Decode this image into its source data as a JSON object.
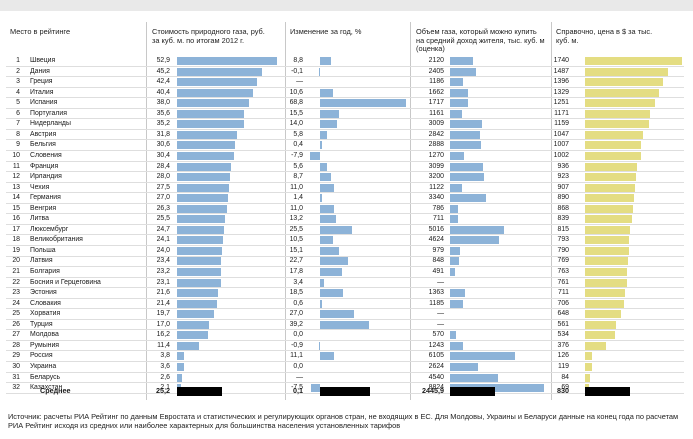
{
  "headers": {
    "rank": "Место в рейтинге",
    "price": "Стоимость природного газа, руб. за куб. м. по итогам 2012 г.",
    "change": "Изменение за год, %",
    "volume": "Объем газа, который можно купить на средний доход жителя, тыс. куб. м (оценка)",
    "usd": "Справочно, цена в $ за тыс. куб. м."
  },
  "rows": [
    {
      "rank": "1",
      "country": "Швеция",
      "price": "52,9",
      "change": "8,8",
      "volume": "2120",
      "usd": "1740"
    },
    {
      "rank": "2",
      "country": "Дания",
      "price": "45,2",
      "change": "-0,1",
      "volume": "2405",
      "usd": "1487"
    },
    {
      "rank": "3",
      "country": "Греция",
      "price": "42,4",
      "change": "—",
      "volume": "1186",
      "usd": "1396"
    },
    {
      "rank": "4",
      "country": "Италия",
      "price": "40,4",
      "change": "10,6",
      "volume": "1662",
      "usd": "1329"
    },
    {
      "rank": "5",
      "country": "Испания",
      "price": "38,0",
      "change": "68,8",
      "volume": "1717",
      "usd": "1251"
    },
    {
      "rank": "6",
      "country": "Португалия",
      "price": "35,6",
      "change": "15,5",
      "volume": "1161",
      "usd": "1171"
    },
    {
      "rank": "7",
      "country": "Нидерланды",
      "price": "35,2",
      "change": "14,0",
      "volume": "3009",
      "usd": "1159"
    },
    {
      "rank": "8",
      "country": "Австрия",
      "price": "31,8",
      "change": "5,8",
      "volume": "2842",
      "usd": "1047"
    },
    {
      "rank": "9",
      "country": "Бельгия",
      "price": "30,6",
      "change": "0,4",
      "volume": "2888",
      "usd": "1007"
    },
    {
      "rank": "10",
      "country": "Словения",
      "price": "30,4",
      "change": "-7,9",
      "volume": "1270",
      "usd": "1002"
    },
    {
      "rank": "11",
      "country": "Франция",
      "price": "28,4",
      "change": "5,6",
      "volume": "3099",
      "usd": "936"
    },
    {
      "rank": "12",
      "country": "Ирландия",
      "price": "28,0",
      "change": "8,7",
      "volume": "3200",
      "usd": "923"
    },
    {
      "rank": "13",
      "country": "Чехия",
      "price": "27,5",
      "change": "11,0",
      "volume": "1122",
      "usd": "907"
    },
    {
      "rank": "14",
      "country": "Германия",
      "price": "27,0",
      "change": "1,4",
      "volume": "3340",
      "usd": "890"
    },
    {
      "rank": "15",
      "country": "Венгрия",
      "price": "26,3",
      "change": "11,0",
      "volume": "786",
      "usd": "868"
    },
    {
      "rank": "16",
      "country": "Литва",
      "price": "25,5",
      "change": "13,2",
      "volume": "711",
      "usd": "839"
    },
    {
      "rank": "17",
      "country": "Люксембург",
      "price": "24,7",
      "change": "25,5",
      "volume": "5016",
      "usd": "815"
    },
    {
      "rank": "18",
      "country": "Великобритания",
      "price": "24,1",
      "change": "10,5",
      "volume": "4624",
      "usd": "793"
    },
    {
      "rank": "19",
      "country": "Польша",
      "price": "24,0",
      "change": "15,1",
      "volume": "979",
      "usd": "790"
    },
    {
      "rank": "20",
      "country": "Латвия",
      "price": "23,4",
      "change": "22,7",
      "volume": "848",
      "usd": "769"
    },
    {
      "rank": "21",
      "country": "Болгария",
      "price": "23,2",
      "change": "17,8",
      "volume": "491",
      "usd": "763"
    },
    {
      "rank": "22",
      "country": "Босния и Герцеговина",
      "price": "23,1",
      "change": "3,4",
      "volume": "—",
      "usd": "761"
    },
    {
      "rank": "23",
      "country": "Эстония",
      "price": "21,6",
      "change": "18,5",
      "volume": "1363",
      "usd": "711"
    },
    {
      "rank": "24",
      "country": "Словакия",
      "price": "21,4",
      "change": "0,6",
      "volume": "1185",
      "usd": "706"
    },
    {
      "rank": "25",
      "country": "Хорватия",
      "price": "19,7",
      "change": "27,0",
      "volume": "—",
      "usd": "648"
    },
    {
      "rank": "26",
      "country": "Турция",
      "price": "17,0",
      "change": "39,2",
      "volume": "—",
      "usd": "561"
    },
    {
      "rank": "27",
      "country": "Молдова",
      "price": "16,2",
      "change": "0,0",
      "volume": "570",
      "usd": "534"
    },
    {
      "rank": "28",
      "country": "Румыния",
      "price": "11,4",
      "change": "-0,9",
      "volume": "1243",
      "usd": "376"
    },
    {
      "rank": "29",
      "country": "Россия",
      "price": "3,8",
      "change": "11,1",
      "volume": "6105",
      "usd": "126"
    },
    {
      "rank": "30",
      "country": "Украина",
      "price": "3,6",
      "change": "0,0",
      "volume": "2624",
      "usd": "119"
    },
    {
      "rank": "31",
      "country": "Беларусь",
      "price": "2,6",
      "change": "—",
      "volume": "4540",
      "usd": "84"
    },
    {
      "rank": "32",
      "country": "Казахстан",
      "price": "2,1",
      "change": "-7,5",
      "volume": "8824",
      "usd": "69"
    }
  ],
  "average": {
    "label": "Среднее",
    "price": "25,2",
    "change": "0,1",
    "volume": "2445,9",
    "usd": "830"
  },
  "footnote": "Источник: расчеты РИА Рейтинг по данным Евростата и статистических и регулирующих органов стран, не входящих в ЕС. Для Молдовы, Украины и Беларуси данные на конец года по расчетам РИА Рейтинг исходя из средних или наиболее характерных для большинства населения установленных тарифов",
  "chart_data": {
    "type": "bar",
    "title": "",
    "categories": [
      "Швеция",
      "Дания",
      "Греция",
      "Италия",
      "Испания",
      "Португалия",
      "Нидерланды",
      "Австрия",
      "Бельгия",
      "Словения",
      "Франция",
      "Ирландия",
      "Чехия",
      "Германия",
      "Венгрия",
      "Литва",
      "Люксембург",
      "Великобритания",
      "Польша",
      "Латвия",
      "Болгария",
      "Босния и Герцеговина",
      "Эстония",
      "Словакия",
      "Хорватия",
      "Турция",
      "Молдова",
      "Румыния",
      "Россия",
      "Украина",
      "Беларусь",
      "Казахстан"
    ],
    "series": [
      {
        "name": "Стоимость природного газа, руб. за куб. м.",
        "values": [
          52.9,
          45.2,
          42.4,
          40.4,
          38.0,
          35.6,
          35.2,
          31.8,
          30.6,
          30.4,
          28.4,
          28.0,
          27.5,
          27.0,
          26.3,
          25.5,
          24.7,
          24.1,
          24.0,
          23.4,
          23.2,
          23.1,
          21.6,
          21.4,
          19.7,
          17.0,
          16.2,
          11.4,
          3.8,
          3.6,
          2.6,
          2.1
        ],
        "max": 55
      },
      {
        "name": "Изменение за год, %",
        "values": [
          8.8,
          -0.1,
          null,
          10.6,
          68.8,
          15.5,
          14.0,
          5.8,
          0.4,
          -7.9,
          5.6,
          8.7,
          11.0,
          1.4,
          11.0,
          13.2,
          25.5,
          10.5,
          15.1,
          22.7,
          17.8,
          3.4,
          18.5,
          0.6,
          27.0,
          39.2,
          0.0,
          -0.9,
          11.1,
          0.0,
          null,
          -7.5
        ],
        "min": -10,
        "max": 70
      },
      {
        "name": "Объем газа, тыс. куб. м",
        "values": [
          2120,
          2405,
          1186,
          1662,
          1717,
          1161,
          3009,
          2842,
          2888,
          1270,
          3099,
          3200,
          1122,
          3340,
          786,
          711,
          5016,
          4624,
          979,
          848,
          491,
          null,
          1363,
          1185,
          null,
          null,
          570,
          1243,
          6105,
          2624,
          4540,
          8824
        ],
        "max": 9000
      },
      {
        "name": "Цена в $ за тыс. куб. м.",
        "values": [
          1740,
          1487,
          1396,
          1329,
          1251,
          1171,
          1159,
          1047,
          1007,
          1002,
          936,
          923,
          907,
          890,
          868,
          839,
          815,
          793,
          790,
          769,
          763,
          761,
          711,
          706,
          648,
          561,
          534,
          376,
          126,
          119,
          84,
          69
        ],
        "max": 1800
      }
    ],
    "average": {
      "price": 25.2,
      "change": 0.1,
      "volume": 2445.9,
      "usd": 830
    }
  }
}
